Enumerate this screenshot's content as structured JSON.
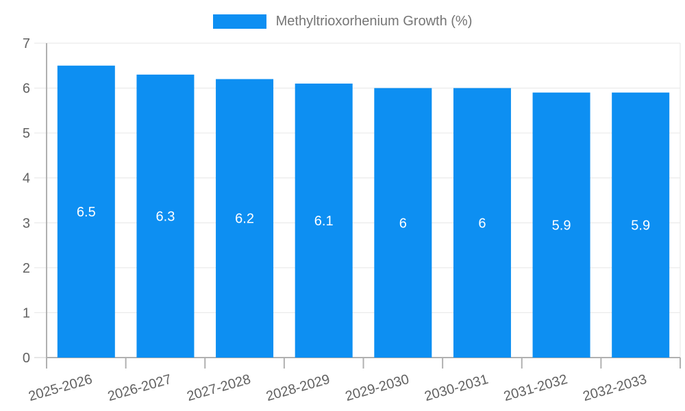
{
  "chart_data": {
    "type": "bar",
    "title": "",
    "legend": "Methyltrioxorhenium Growth (%)",
    "legend_position": "top",
    "categories": [
      "2025-2026",
      "2026-2027",
      "2027-2028",
      "2028-2029",
      "2029-2030",
      "2030-2031",
      "2031-2032",
      "2032-2033"
    ],
    "values": [
      6.5,
      6.3,
      6.2,
      6.1,
      6,
      6,
      5.9,
      5.9
    ],
    "xlabel": "",
    "ylabel": "",
    "ylim": [
      0,
      7
    ],
    "yticks": [
      0,
      1,
      2,
      3,
      4,
      5,
      6,
      7
    ],
    "grid": true,
    "colors": {
      "bar": "#0d8ff2",
      "value_label": "#ffffff",
      "axis_label": "#616161",
      "legend_text": "#757575",
      "grid_line": "#e6e6e6",
      "axis_line": "#b0b0b0"
    }
  }
}
